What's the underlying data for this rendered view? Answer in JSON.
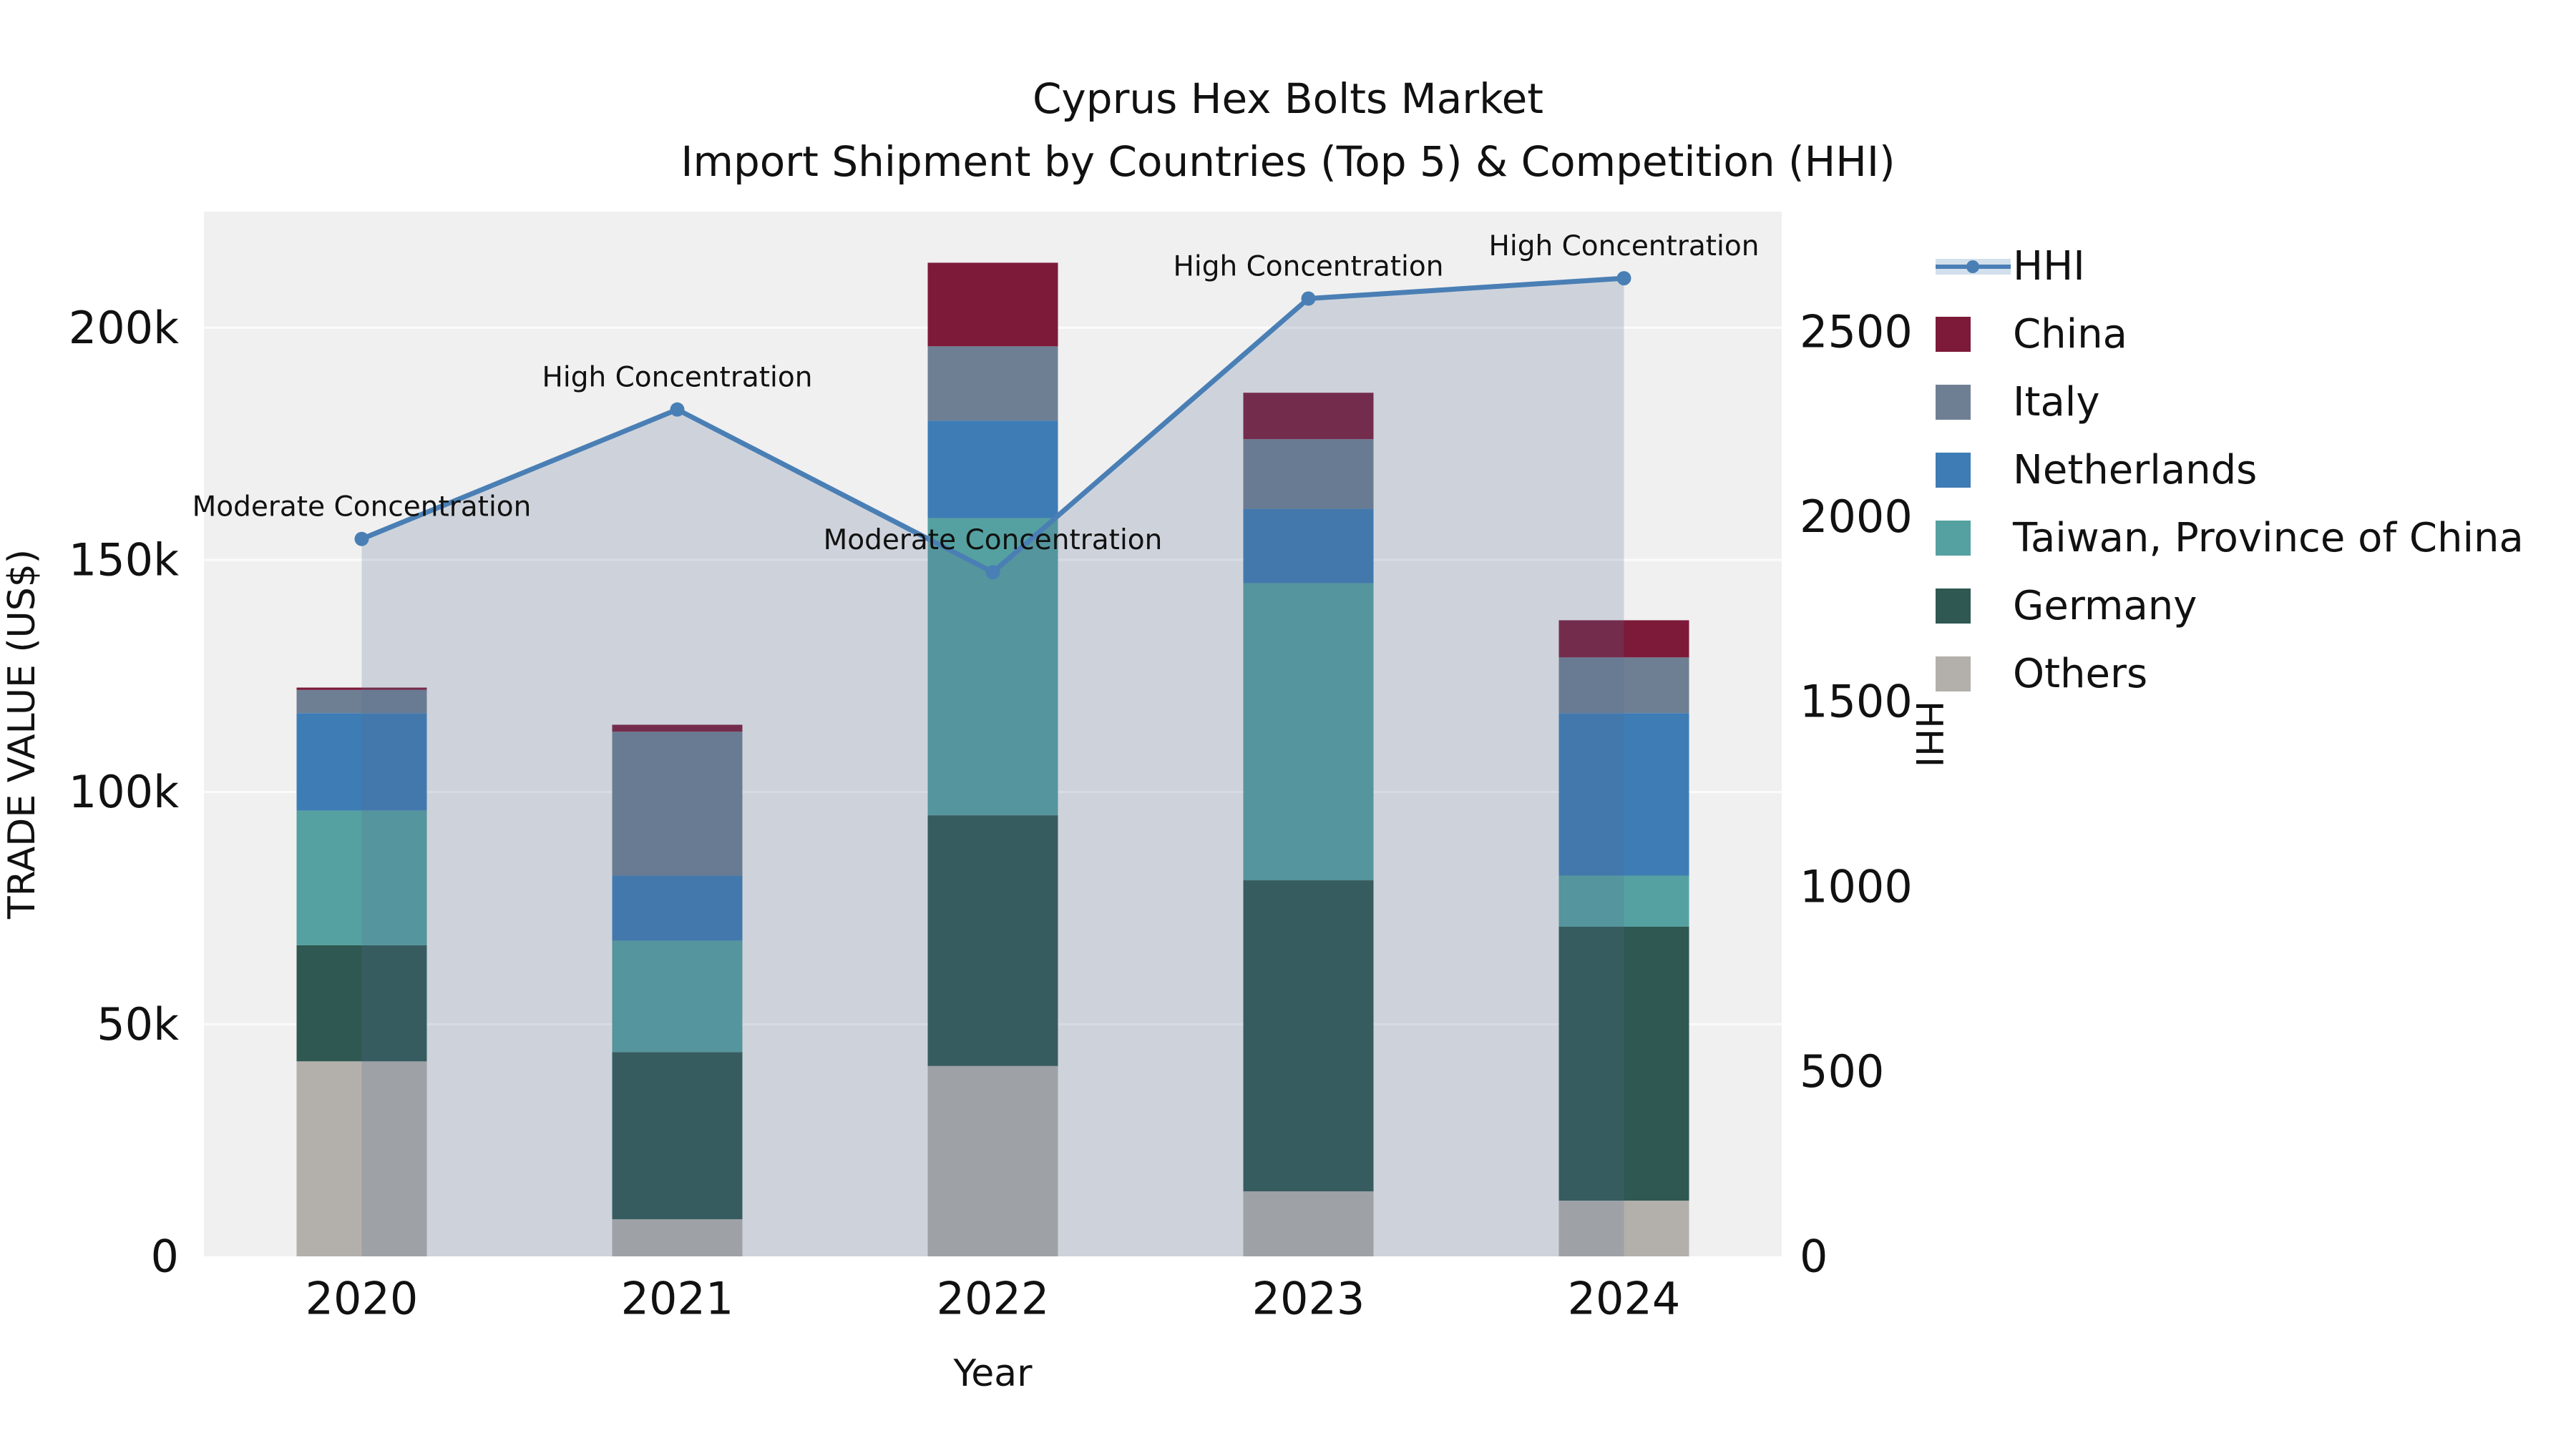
{
  "title": {
    "line1": "Cyprus Hex Bolts Market",
    "line2": "Import Shipment by Countries (Top 5) & Competition (HHI)"
  },
  "axes": {
    "x_label": "Year",
    "y_left_label": "TRADE VALUE (US$)",
    "y_right_label": "HHI",
    "y_left_max": 225000,
    "y_right_max": 2825,
    "y_left_ticks": [
      {
        "value": 0,
        "label": "0"
      },
      {
        "value": 50000,
        "label": "50k"
      },
      {
        "value": 100000,
        "label": "100k"
      },
      {
        "value": 150000,
        "label": "150k"
      },
      {
        "value": 200000,
        "label": "200k"
      }
    ],
    "y_right_ticks": [
      {
        "value": 0,
        "label": "0"
      },
      {
        "value": 500,
        "label": "500"
      },
      {
        "value": 1000,
        "label": "1000"
      },
      {
        "value": 1500,
        "label": "1500"
      },
      {
        "value": 2000,
        "label": "2000"
      },
      {
        "value": 2500,
        "label": "2500"
      }
    ]
  },
  "chart_data": {
    "type": "bar",
    "variant": "stacked bars (trade value by country) + HHI line with area fill",
    "title": "Cyprus Hex Bolts Market — Import Shipment by Countries (Top 5) & Competition (HHI)",
    "xlabel": "Year",
    "ylabel_left": "TRADE VALUE (US$)",
    "ylabel_right": "HHI",
    "ylim_left": [
      0,
      225000
    ],
    "ylim_right": [
      0,
      2825
    ],
    "grid": "horizontal, subtle",
    "legend_position": "right",
    "categories": [
      "2020",
      "2021",
      "2022",
      "2023",
      "2024"
    ],
    "series": [
      {
        "name": "Others",
        "color": "#b3b0ac",
        "values": [
          42000,
          8000,
          41000,
          14000,
          12000
        ]
      },
      {
        "name": "Germany",
        "color": "#2f5852",
        "values": [
          25000,
          36000,
          54000,
          67000,
          59000
        ]
      },
      {
        "name": "Taiwan, Province of China",
        "color": "#55a1a1",
        "values": [
          29000,
          24000,
          64000,
          64000,
          11000
        ]
      },
      {
        "name": "Netherlands",
        "color": "#3e7cb5",
        "values": [
          21000,
          14000,
          21000,
          16000,
          35000
        ]
      },
      {
        "name": "Italy",
        "color": "#6f7f93",
        "values": [
          5000,
          31000,
          16000,
          15000,
          12000
        ]
      },
      {
        "name": "China",
        "color": "#7d1a3a",
        "values": [
          500,
          1500,
          18000,
          10000,
          8000
        ]
      }
    ],
    "line": {
      "name": "HHI",
      "color": "#4a7fb5",
      "area_fill": "rgba(88,108,145,0.22)",
      "values": [
        1940,
        2290,
        1850,
        2590,
        2645
      ],
      "annotations": [
        "Moderate Concentration",
        "High Concentration",
        "Moderate Concentration",
        "High Concentration",
        "High Concentration"
      ]
    }
  },
  "legend": {
    "items": [
      {
        "label": "HHI",
        "type": "line",
        "color": "#4a7fb5"
      },
      {
        "label": "China",
        "type": "square",
        "color": "#7d1a3a"
      },
      {
        "label": "Italy",
        "type": "square",
        "color": "#6f7f93"
      },
      {
        "label": "Netherlands",
        "type": "square",
        "color": "#3e7cb5"
      },
      {
        "label": "Taiwan, Province of China",
        "type": "square",
        "color": "#55a1a1"
      },
      {
        "label": "Germany",
        "type": "square",
        "color": "#2f5852"
      },
      {
        "label": "Others",
        "type": "square",
        "color": "#b3b0ac"
      }
    ]
  },
  "colors": {
    "plot_background": "#f0f0f0",
    "gridline": "#fbfbfb",
    "text": "#111111"
  }
}
